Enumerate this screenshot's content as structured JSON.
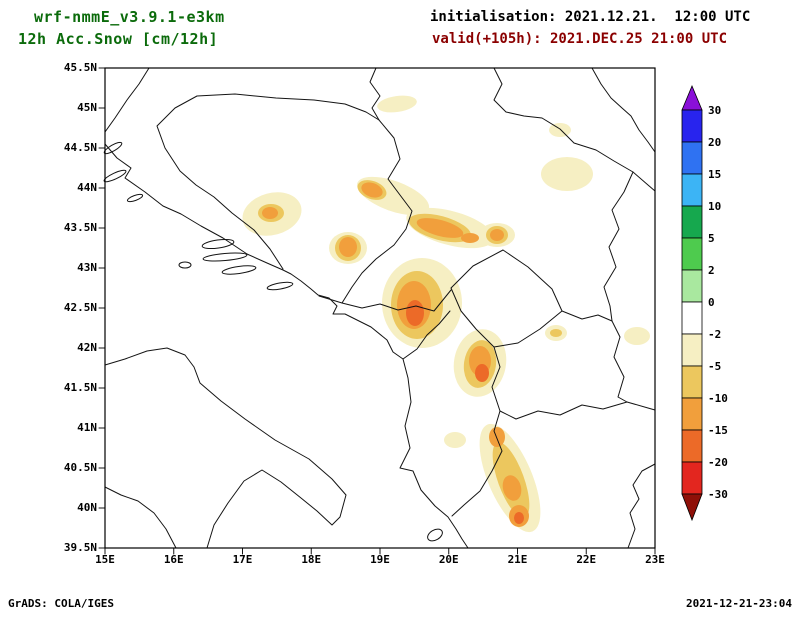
{
  "header": {
    "title_line1": "wrf-nmmE_v3.9.1-e3km",
    "title_line2": "12h Acc.Snow [cm/12h]",
    "title_color": "#0b6b0b",
    "init_label": "initialisation: 2021.12.21.  12:00 UTC",
    "init_color": "#000000",
    "valid_label": "valid(+105h): 2021.DEC.25 21:00 UTC",
    "valid_color": "#8b0000"
  },
  "map": {
    "region": "Balkan peninsula / Adriatic Sea",
    "lat_labels": [
      "45.5N",
      "45N",
      "44.5N",
      "44N",
      "43.5N",
      "43N",
      "42.5N",
      "42N",
      "41.5N",
      "41N",
      "40.5N",
      "40N",
      "39.5N"
    ],
    "lon_labels": [
      "15E",
      "16E",
      "17E",
      "18E",
      "19E",
      "20E",
      "21E",
      "22E",
      "23E"
    ]
  },
  "colorbar": {
    "labels": [
      "30",
      "20",
      "15",
      "10",
      "5",
      "2",
      "0",
      "-2",
      "-5",
      "-10",
      "-15",
      "-20",
      "-30"
    ],
    "arrow_top_color": "#8a10d8",
    "arrow_bottom_color": "#8f1008",
    "segment_colors_top_to_bottom": [
      "#2824ee",
      "#2f72f2",
      "#3cb4f5",
      "#16a84e",
      "#4ecb4e",
      "#a9e89f",
      "#ffffff",
      "#f6efc3",
      "#ecc75e",
      "#f19f3c",
      "#ec6a28",
      "#e3261f"
    ]
  },
  "footer": {
    "left": "GrADS: COLA/IGES",
    "right": "2021-12-21-23:04"
  },
  "chart_data": {
    "type": "heatmap",
    "title": "12h Acc.Snow [cm/12h]",
    "model": "wrf-nmmE_v3.9.1-e3km",
    "x_axis": {
      "label": "longitude",
      "range": [
        15,
        23
      ],
      "ticks": [
        "15E",
        "16E",
        "17E",
        "18E",
        "19E",
        "20E",
        "21E",
        "22E",
        "23E"
      ]
    },
    "y_axis": {
      "label": "latitude",
      "range": [
        39.5,
        45.5
      ],
      "ticks": [
        "45.5N",
        "45N",
        "44.5N",
        "44N",
        "43.5N",
        "43N",
        "42.5N",
        "42N",
        "41.5N",
        "41N",
        "40.5N",
        "40N",
        "39.5N"
      ]
    },
    "colorbar_levels": [
      30,
      20,
      15,
      10,
      5,
      2,
      0,
      -2,
      -5,
      -10,
      -15,
      -20,
      -30
    ],
    "legend_position": "right",
    "grid": false,
    "snow_patches": [
      {
        "lon": 19.2,
        "lat": 45.1,
        "band": "-2"
      },
      {
        "lon": 21.7,
        "lat": 44.2,
        "band": "-2"
      },
      {
        "lon": 21.6,
        "lat": 44.7,
        "band": "-2"
      },
      {
        "lon": 17.4,
        "lat": 43.7,
        "band": "-5"
      },
      {
        "lon": 19.1,
        "lat": 43.9,
        "band": "-5"
      },
      {
        "lon": 19.9,
        "lat": 43.5,
        "band": "-10"
      },
      {
        "lon": 20.7,
        "lat": 43.4,
        "band": "-5"
      },
      {
        "lon": 18.5,
        "lat": 43.3,
        "band": "-5"
      },
      {
        "lon": 19.5,
        "lat": 42.5,
        "band": "-10"
      },
      {
        "lon": 20.5,
        "lat": 41.8,
        "band": "-10"
      },
      {
        "lon": 21.6,
        "lat": 42.2,
        "band": "-2"
      },
      {
        "lon": 22.7,
        "lat": 42.2,
        "band": "-2"
      },
      {
        "lon": 20.1,
        "lat": 40.9,
        "band": "-2"
      },
      {
        "lon": 20.9,
        "lat": 40.3,
        "band": "-10"
      },
      {
        "lon": 21.0,
        "lat": 39.9,
        "band": "-10"
      }
    ]
  }
}
